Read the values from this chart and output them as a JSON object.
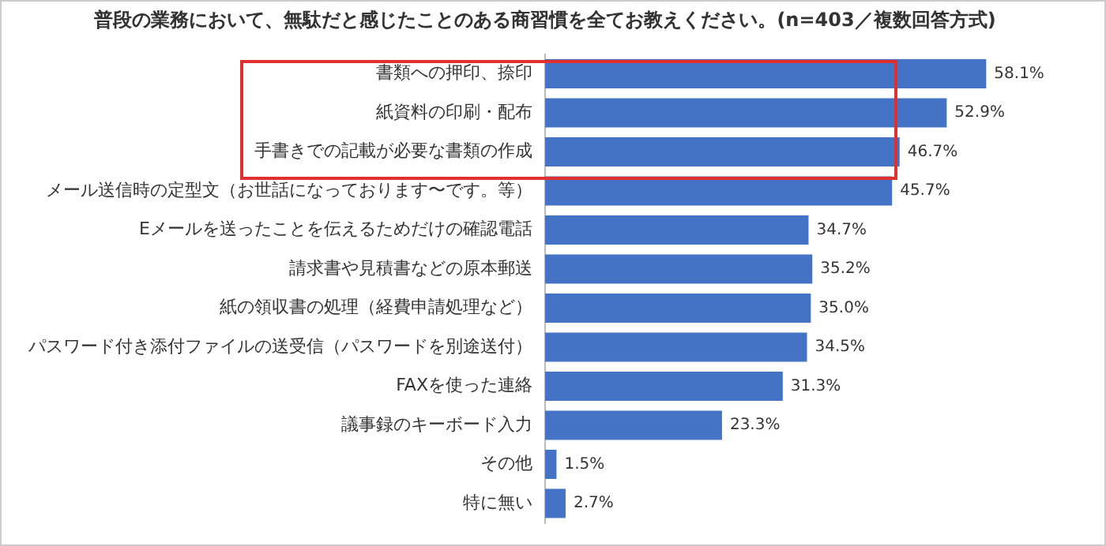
{
  "chart_data": {
    "type": "bar",
    "orientation": "horizontal",
    "title": "普段の業務において、無駄だと感じたことのある商習慣を全てお教えください。(n=403／複数回答方式)",
    "categories": [
      "書類への押印、捺印",
      "紙資料の印刷・配布",
      "手書きでの記載が必要な書類の作成",
      "メール送信時の定型文（お世話になっております〜です。等）",
      "Eメールを送ったことを伝えるためだけの確認電話",
      "請求書や見積書などの原本郵送",
      "紙の領収書の処理（経費申請処理など）",
      "パスワード付き添付ファイルの送受信（パスワードを別途送付）",
      "FAXを使った連絡",
      "議事録のキーボード入力",
      "その他",
      "特に無い"
    ],
    "values": [
      58.1,
      52.9,
      46.7,
      45.7,
      34.7,
      35.2,
      35.0,
      34.5,
      31.3,
      23.3,
      1.5,
      2.7
    ],
    "value_labels": [
      "58.1%",
      "52.9%",
      "46.7%",
      "45.7%",
      "34.7%",
      "35.2%",
      "35.0%",
      "34.5%",
      "31.3%",
      "23.3%",
      "1.5%",
      "2.7%"
    ],
    "color": "#4472c4",
    "tick_labels": "y",
    "grid": false,
    "legend": false
  }
}
